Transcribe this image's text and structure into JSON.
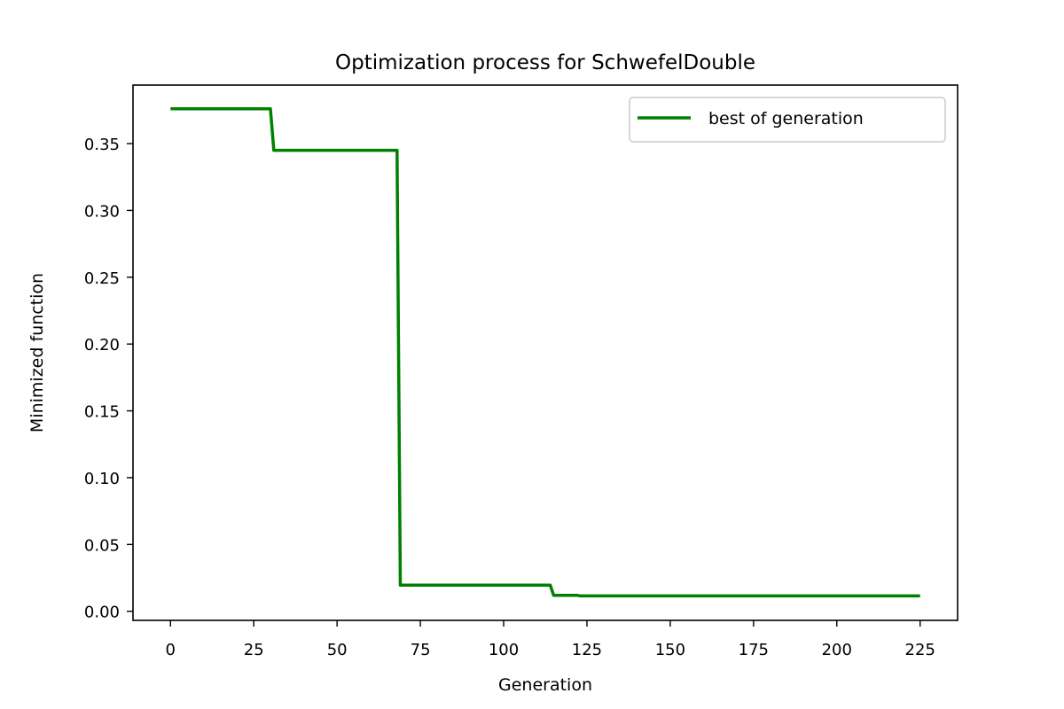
{
  "chart_data": {
    "type": "line",
    "title": "Optimization process for SchwefelDouble",
    "xlabel": "Generation",
    "ylabel": "Minimized function",
    "xlim": [
      -11.25,
      236.25
    ],
    "ylim": [
      -0.0068,
      0.3938
    ],
    "xticks": [
      0,
      25,
      50,
      75,
      100,
      125,
      150,
      175,
      200,
      225
    ],
    "yticks": [
      0.0,
      0.05,
      0.1,
      0.15,
      0.2,
      0.25,
      0.3,
      0.35
    ],
    "xtick_labels": [
      "0",
      "25",
      "50",
      "75",
      "100",
      "125",
      "150",
      "175",
      "200",
      "225"
    ],
    "ytick_labels": [
      "0.00",
      "0.05",
      "0.10",
      "0.15",
      "0.20",
      "0.25",
      "0.30",
      "0.35"
    ],
    "grid": false,
    "legend_position": "top-right",
    "series": [
      {
        "name": "best of generation",
        "color": "#008000",
        "x": [
          0,
          30,
          31,
          68,
          69,
          114,
          115,
          122,
          123,
          225
        ],
        "y": [
          0.376,
          0.376,
          0.345,
          0.345,
          0.0195,
          0.0195,
          0.012,
          0.012,
          0.0115,
          0.0115
        ]
      }
    ]
  }
}
